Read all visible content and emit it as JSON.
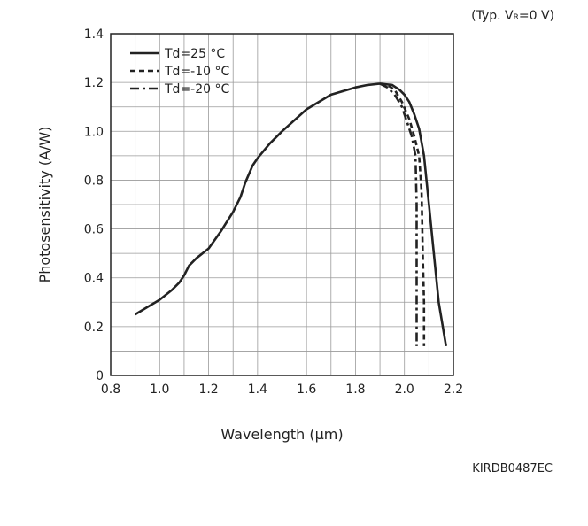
{
  "header": {
    "typ_prefix": "(Typ. V",
    "typ_sub": "R",
    "typ_suffix": "=0 V)"
  },
  "footer": {
    "doc_id": "KIRDB0487EC"
  },
  "chart_data": {
    "type": "line",
    "title": "",
    "xlabel": "Wavelength (µm)",
    "ylabel": "Photosensitivity (A/W)",
    "xlim": [
      0.8,
      2.2
    ],
    "ylim": [
      0,
      1.4
    ],
    "xticks": [
      0.8,
      1.0,
      1.2,
      1.4,
      1.6,
      1.8,
      2.0,
      2.2
    ],
    "xtick_labels": [
      "0.8",
      "1.0",
      "1.2",
      "1.4",
      "1.6",
      "1.8",
      "2.0",
      "2.2"
    ],
    "yticks": [
      0,
      0.2,
      0.4,
      0.6,
      0.8,
      1.0,
      1.2,
      1.4
    ],
    "ytick_labels": [
      "0",
      "0.2",
      "0.4",
      "0.6",
      "0.8",
      "1.0",
      "1.2",
      "1.4"
    ],
    "grid": true,
    "legend_position": "top-left",
    "series": [
      {
        "name": "Td=25 °C",
        "style": "solid",
        "color": "#222222",
        "x": [
          0.9,
          0.95,
          1.0,
          1.05,
          1.08,
          1.1,
          1.12,
          1.15,
          1.2,
          1.25,
          1.3,
          1.33,
          1.35,
          1.38,
          1.4,
          1.45,
          1.5,
          1.6,
          1.7,
          1.8,
          1.85,
          1.9,
          1.95,
          1.98,
          2.0,
          2.02,
          2.04,
          2.06,
          2.08,
          2.1,
          2.12,
          2.14,
          2.17
        ],
        "y": [
          0.25,
          0.28,
          0.31,
          0.35,
          0.38,
          0.41,
          0.45,
          0.48,
          0.52,
          0.59,
          0.67,
          0.73,
          0.79,
          0.86,
          0.89,
          0.95,
          1.0,
          1.09,
          1.15,
          1.18,
          1.19,
          1.195,
          1.19,
          1.17,
          1.15,
          1.12,
          1.07,
          1.01,
          0.9,
          0.7,
          0.5,
          0.3,
          0.12
        ]
      },
      {
        "name": "Td=-10 °C",
        "style": "dashed",
        "color": "#222222",
        "x": [
          1.9,
          1.93,
          1.96,
          1.99,
          2.02,
          2.04,
          2.06,
          2.07,
          2.075,
          2.08,
          2.08
        ],
        "y": [
          1.195,
          1.19,
          1.17,
          1.12,
          1.05,
          0.98,
          0.9,
          0.75,
          0.5,
          0.3,
          0.12
        ]
      },
      {
        "name": "Td=-20 °C",
        "style": "dashdot",
        "color": "#222222",
        "x": [
          1.9,
          1.93,
          1.96,
          1.99,
          2.01,
          2.03,
          2.045,
          2.05,
          2.05,
          2.05
        ],
        "y": [
          1.195,
          1.18,
          1.15,
          1.1,
          1.04,
          0.98,
          0.9,
          0.7,
          0.4,
          0.12
        ]
      }
    ]
  }
}
